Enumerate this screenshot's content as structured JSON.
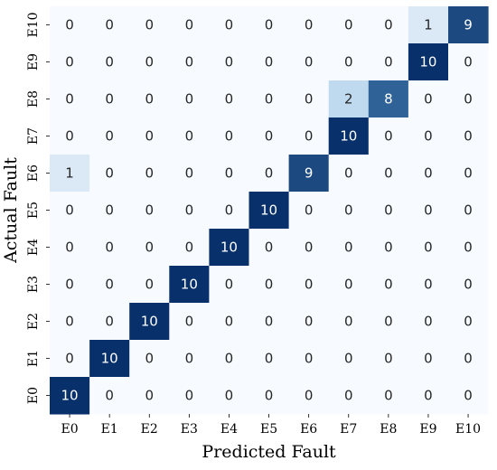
{
  "chart_data": {
    "type": "heatmap",
    "xlabel": "Predicted Fault",
    "ylabel": "Actual Fault",
    "x_categories": [
      "E0",
      "E1",
      "E2",
      "E3",
      "E4",
      "E5",
      "E6",
      "E7",
      "E8",
      "E9",
      "E10"
    ],
    "y_categories_top_to_bottom": [
      "E10",
      "E9",
      "E8",
      "E7",
      "E6",
      "E5",
      "E4",
      "E3",
      "E2",
      "E1",
      "E0"
    ],
    "matrix_top_to_bottom": [
      [
        0,
        0,
        0,
        0,
        0,
        0,
        0,
        0,
        0,
        1,
        9
      ],
      [
        0,
        0,
        0,
        0,
        0,
        0,
        0,
        0,
        0,
        10,
        0
      ],
      [
        0,
        0,
        0,
        0,
        0,
        0,
        0,
        2,
        8,
        0,
        0
      ],
      [
        0,
        0,
        0,
        0,
        0,
        0,
        0,
        10,
        0,
        0,
        0
      ],
      [
        1,
        0,
        0,
        0,
        0,
        0,
        9,
        0,
        0,
        0,
        0
      ],
      [
        0,
        0,
        0,
        0,
        0,
        10,
        0,
        0,
        0,
        0,
        0
      ],
      [
        0,
        0,
        0,
        0,
        10,
        0,
        0,
        0,
        0,
        0,
        0
      ],
      [
        0,
        0,
        0,
        10,
        0,
        0,
        0,
        0,
        0,
        0,
        0
      ],
      [
        0,
        0,
        10,
        0,
        0,
        0,
        0,
        0,
        0,
        0,
        0
      ],
      [
        0,
        10,
        0,
        0,
        0,
        0,
        0,
        0,
        0,
        0,
        0
      ],
      [
        10,
        0,
        0,
        0,
        0,
        0,
        0,
        0,
        0,
        0,
        0
      ]
    ],
    "value_range": [
      0,
      10
    ],
    "colormap": "Blues",
    "colors": {
      "low": "#f7fbff",
      "light": "#dbe9f6",
      "mid": "#6aaed6",
      "high": "#08306b",
      "text_on_light": "#262626",
      "text_on_dark": "#ffffff"
    },
    "grid": false,
    "legend": "none"
  }
}
